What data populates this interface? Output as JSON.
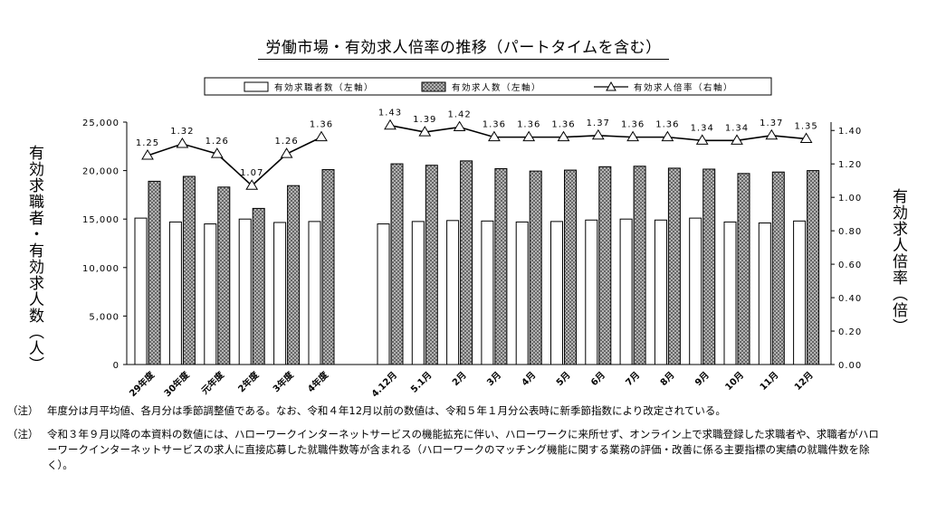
{
  "title": "労働市場・有効求人倍率の推移（パートタイムを含む）",
  "legend": {
    "seekers": "有効求職者数（左軸）",
    "openings": "有効求人数（左軸）",
    "ratio": "有効求人倍率（右軸）"
  },
  "axis": {
    "left_label": "有効求職者・有効求人数（人）",
    "right_label": "有効求人倍率（倍）"
  },
  "notes": [
    {
      "mark": "（注）",
      "text": "年度分は月平均値、各月分は季節調整値である。なお、令和４年12月以前の数値は、令和５年１月分公表時に新季節指数により改定されている。"
    },
    {
      "mark": "（注）",
      "text": "令和３年９月以降の本資料の数値には、ハローワークインターネットサービスの機能拡充に伴い、ハローワークに来所せず、オンライン上で求職登録した求職者や、求職者がハローワークインターネットサービスの求人に直接応募した就職件数等が含まれる（ハローワークのマッチング機能に関する業務の評価・改善に係る主要指標の実績の就職件数を除く）。"
    }
  ],
  "chart_data": {
    "type": "bar",
    "categories": [
      "29年度",
      "30年度",
      "元年度",
      "2年度",
      "3年度",
      "4年度",
      "4.12月",
      "5.1月",
      "2月",
      "3月",
      "4月",
      "5月",
      "6月",
      "7月",
      "8月",
      "9月",
      "10月",
      "11月",
      "12月"
    ],
    "series": [
      {
        "name": "有効求職者数（左軸）",
        "axis": "left",
        "color": "#ffffff",
        "values": [
          15100,
          14700,
          14500,
          15000,
          14650,
          14750,
          14500,
          14750,
          14850,
          14800,
          14700,
          14750,
          14900,
          15000,
          14900,
          15100,
          14700,
          14600,
          14800
        ]
      },
      {
        "name": "有効求人数（左軸）",
        "axis": "left",
        "color": "#bdbdbd",
        "values": [
          18900,
          19400,
          18300,
          16100,
          18450,
          20100,
          20700,
          20550,
          21000,
          20200,
          19950,
          20050,
          20400,
          20450,
          20250,
          20150,
          19700,
          19850,
          20000
        ]
      },
      {
        "name": "有効求人倍率（右軸）",
        "axis": "right",
        "type": "line",
        "values": [
          1.25,
          1.32,
          1.26,
          1.07,
          1.26,
          1.36,
          1.43,
          1.39,
          1.42,
          1.36,
          1.36,
          1.36,
          1.37,
          1.36,
          1.36,
          1.34,
          1.34,
          1.37,
          1.35
        ]
      }
    ],
    "left_ticks": [
      "0",
      "5,000",
      "10,000",
      "15,000",
      "20,000",
      "25,000"
    ],
    "right_ticks": [
      "0.00",
      "0.20",
      "0.40",
      "0.60",
      "0.80",
      "1.00",
      "1.20",
      "1.40"
    ],
    "ylim_left": [
      0,
      25000
    ],
    "ylim_right": [
      0,
      1.45
    ],
    "legend_position": "top"
  }
}
